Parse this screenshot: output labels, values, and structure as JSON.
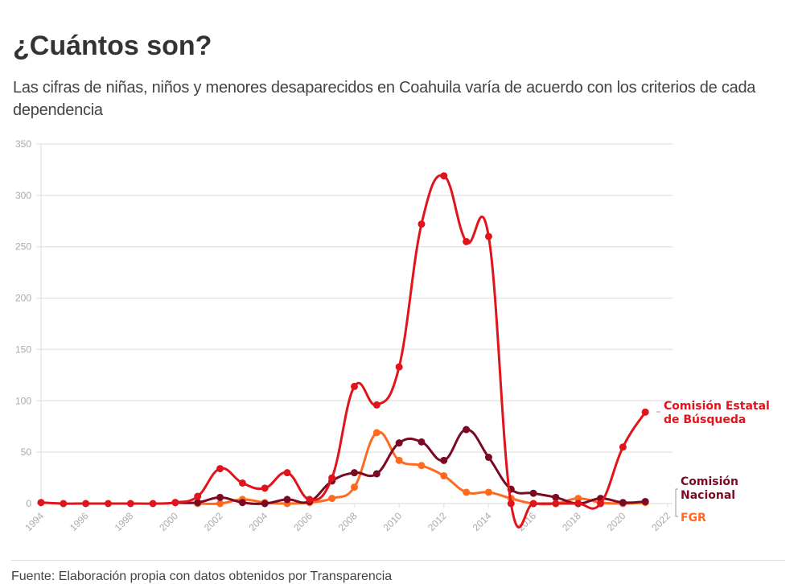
{
  "title": "¿Cuántos son?",
  "subtitle": "Las cifras de niñas, niños y menores desaparecidos en Coahuila varía de acuerdo con los criterios de cada dependencia",
  "source": "Fuente: Elaboración propia con datos obtenidos por Transparencia",
  "chart_data": {
    "type": "line",
    "xlim": [
      1994,
      2022
    ],
    "ylim": [
      0,
      350
    ],
    "grid": true,
    "x_ticks": [
      "1994",
      "1996",
      "1998",
      "2000",
      "2002",
      "2004",
      "2006",
      "2008",
      "2010",
      "2012",
      "2014",
      "2016",
      "2018",
      "2020",
      "2022"
    ],
    "y_ticks": [
      "0",
      "50",
      "100",
      "150",
      "200",
      "250",
      "300",
      "350"
    ],
    "series": [
      {
        "name": "Comisión Estatal de Búsqueda",
        "color": "#e0141b",
        "x": [
          1994,
          1995,
          1996,
          1997,
          1998,
          1999,
          2000,
          2001,
          2002,
          2003,
          2004,
          2005,
          2006,
          2007,
          2008,
          2009,
          2010,
          2011,
          2012,
          2013,
          2014,
          2015,
          2016,
          2017,
          2018,
          2019,
          2020,
          2021
        ],
        "y": [
          1,
          0,
          0,
          0,
          0,
          0,
          1,
          7,
          34,
          20,
          15,
          30,
          4,
          25,
          114,
          96,
          133,
          272,
          319,
          255,
          260,
          0,
          0,
          0,
          0,
          0,
          55,
          89
        ]
      },
      {
        "name": "Comisión Nacional",
        "color": "#7a0a24",
        "x": [
          2000,
          2001,
          2002,
          2003,
          2004,
          2005,
          2006,
          2007,
          2008,
          2009,
          2010,
          2011,
          2012,
          2013,
          2014,
          2015,
          2016,
          2017,
          2018,
          2019,
          2020,
          2021
        ],
        "y": [
          1,
          1,
          6,
          1,
          0,
          4,
          2,
          22,
          30,
          29,
          59,
          60,
          42,
          72,
          45,
          14,
          10,
          6,
          0,
          5,
          1,
          2
        ]
      },
      {
        "name": "FGR",
        "color": "#ff6a1f",
        "x": [
          2001,
          2002,
          2003,
          2004,
          2005,
          2006,
          2007,
          2008,
          2009,
          2010,
          2011,
          2012,
          2013,
          2014,
          2015,
          2016,
          2017,
          2018,
          2019,
          2020,
          2021
        ],
        "y": [
          0,
          0,
          4,
          1,
          0,
          1,
          5,
          16,
          69,
          42,
          37,
          27,
          11,
          11,
          5,
          0,
          0,
          5,
          1,
          0,
          1
        ]
      }
    ]
  }
}
